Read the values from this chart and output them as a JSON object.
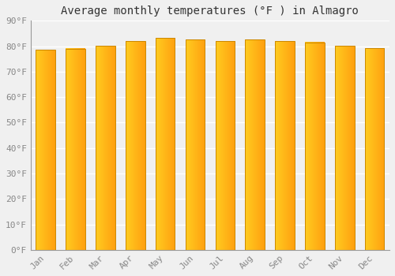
{
  "months": [
    "Jan",
    "Feb",
    "Mar",
    "Apr",
    "May",
    "Jun",
    "Jul",
    "Aug",
    "Sep",
    "Oct",
    "Nov",
    "Dec"
  ],
  "values": [
    78.5,
    79.0,
    80.2,
    82.0,
    83.2,
    82.5,
    82.0,
    82.5,
    82.0,
    81.5,
    80.2,
    79.2
  ],
  "bar_color_left": "#FFCC20",
  "bar_color_right": "#FFA010",
  "bar_edge_color": "#CC8800",
  "title": "Average monthly temperatures (°F ) in Almagro",
  "ylabel_ticks": [
    "0°F",
    "10°F",
    "20°F",
    "30°F",
    "40°F",
    "50°F",
    "60°F",
    "70°F",
    "80°F",
    "90°F"
  ],
  "ytick_values": [
    0,
    10,
    20,
    30,
    40,
    50,
    60,
    70,
    80,
    90
  ],
  "ylim": [
    0,
    90
  ],
  "background_color": "#f0f0f0",
  "grid_color": "#ffffff",
  "title_fontsize": 10,
  "tick_fontsize": 8,
  "font_family": "monospace"
}
